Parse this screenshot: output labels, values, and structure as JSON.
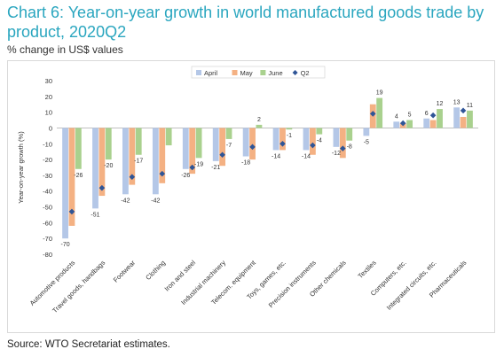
{
  "title": "Chart 6: Year-on-year growth in world manufactured goods trade by product, 2020Q2",
  "subtitle": "% change in US$ values",
  "source": "Source:    WTO Secretariat estimates.",
  "colors": {
    "title": "#2aa6bf",
    "april": "#b4c7e7",
    "may": "#f4b183",
    "june": "#a9d18e",
    "q2": "#2f5597"
  },
  "chart_data": {
    "type": "bar",
    "ylabel": "Year-on-year growth (%)",
    "ylim": [
      -80,
      30
    ],
    "yticks": [
      30,
      20,
      10,
      0,
      -10,
      -20,
      -30,
      -40,
      -50,
      -60,
      -70,
      -80
    ],
    "grid": false,
    "legend": "top-center",
    "categories": [
      "Automotive products",
      "Travel goods, handbags",
      "Footwear",
      "Clothing",
      "Iron and steel",
      "Industrial machinery",
      "Telecom. equipment",
      "Toys, games, etc.",
      "Precision instruments",
      "Other chemicals",
      "Textiles",
      "Computers, etc.",
      "Integrated circuits, etc.",
      "Pharmaceuticals"
    ],
    "series": [
      {
        "name": "April",
        "type": "bar",
        "values": [
          -70,
          -51,
          -42,
          -42,
          -26,
          -21,
          -18,
          -14,
          -14,
          -12,
          -5,
          4,
          6,
          13
        ],
        "labels": [
          "-70",
          "-51",
          "-42",
          "-42",
          "-26",
          "-21",
          "-18",
          "-14",
          "-14",
          "-12",
          "-5",
          "4",
          "6",
          "13"
        ]
      },
      {
        "name": "May",
        "type": "bar",
        "values": [
          -62,
          -43,
          -36,
          -35,
          -29,
          -24,
          -20,
          -14,
          -17,
          -19,
          15,
          3,
          5,
          7
        ],
        "labels": []
      },
      {
        "name": "June",
        "type": "bar",
        "values": [
          -26,
          -20,
          -17,
          -11,
          -19,
          -7,
          2,
          -1,
          -4,
          -8,
          19,
          5,
          12,
          11
        ],
        "labels": [
          "-26",
          "-20",
          "-17",
          "",
          "-19",
          "-7",
          "2",
          "-1",
          "-4",
          "-8",
          "19",
          "5",
          "12",
          "11"
        ]
      },
      {
        "name": "Q2",
        "type": "marker",
        "values": [
          -53,
          -38,
          -31,
          -29,
          -25,
          -17,
          -12,
          -10,
          -11,
          -13,
          9,
          3,
          8,
          11
        ],
        "labels": []
      }
    ]
  }
}
